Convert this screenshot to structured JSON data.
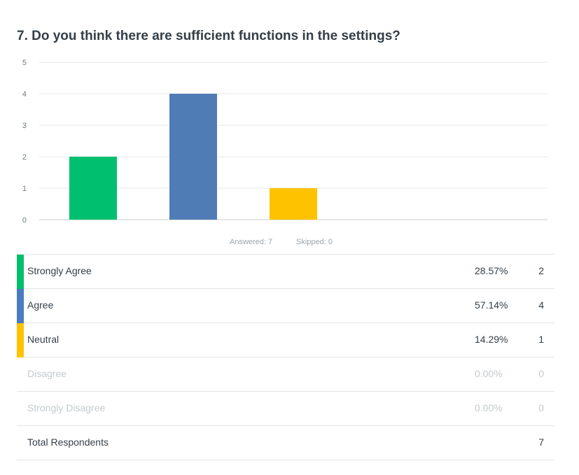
{
  "question": {
    "title": "7. Do you think there are sufficient functions in the settings?"
  },
  "summary": {
    "answered": "Answered: 7",
    "skipped": "Skipped: 0"
  },
  "chart_data": {
    "type": "bar",
    "categories": [
      "Strongly Agree",
      "Agree",
      "Neutral",
      "Disagree",
      "Strongly Disagree"
    ],
    "values": [
      2,
      4,
      1,
      0,
      0
    ],
    "colors": [
      "#00bf6f",
      "#507cb6",
      "#ffc200",
      "#f05b24",
      "#7d3f98"
    ],
    "yticks": [
      "0",
      "1",
      "2",
      "3",
      "4",
      "5"
    ],
    "ylim": [
      0,
      5
    ],
    "grid": true,
    "title": "7. Do you think there are sufficient functions in the settings?"
  },
  "table": {
    "rows": [
      {
        "label": "Strongly Agree",
        "percent": "28.57%",
        "count": "2",
        "color": "#00bf6f"
      },
      {
        "label": "Agree",
        "percent": "57.14%",
        "count": "4",
        "color": "#4a7bbf"
      },
      {
        "label": "Neutral",
        "percent": "14.29%",
        "count": "1",
        "color": "#ffc200"
      },
      {
        "label": "Disagree",
        "percent": "0.00%",
        "count": "0",
        "color": ""
      },
      {
        "label": "Strongly Disagree",
        "percent": "0.00%",
        "count": "0",
        "color": ""
      }
    ],
    "total_label": "Total Respondents",
    "total_count": "7"
  }
}
